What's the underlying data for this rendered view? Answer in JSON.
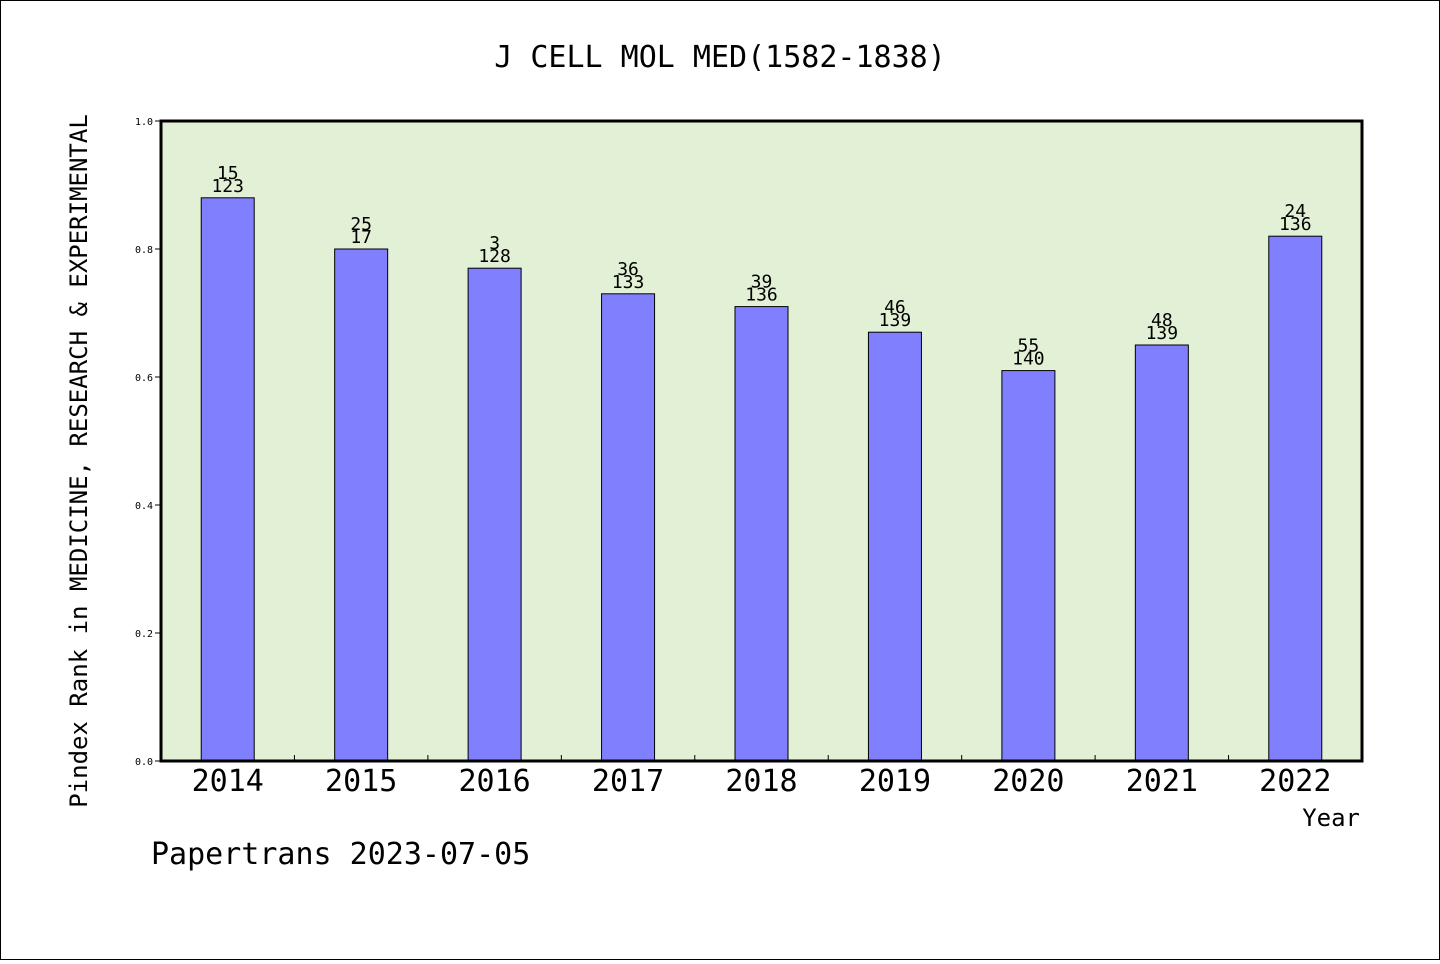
{
  "colors": {
    "plot_background": "#e2f0d6",
    "bar_fill": "#8080ff",
    "bar_stroke": "#000000",
    "axis": "#000000"
  },
  "footer": "Papertrans 2023-07-05",
  "chart_data": {
    "type": "bar",
    "title": "J CELL MOL MED(1582-1838)",
    "xlabel": "Year",
    "ylabel": "Pindex Rank in MEDICINE, RESEARCH & EXPERIMENTAL",
    "ylim": [
      0,
      1.0
    ],
    "yticks": [
      "0.0",
      "0.2",
      "0.4",
      "0.6",
      "0.8",
      "1.0"
    ],
    "grid": false,
    "categories": [
      "2014",
      "2015",
      "2016",
      "2017",
      "2018",
      "2019",
      "2020",
      "2021",
      "2022"
    ],
    "values": [
      0.88,
      0.8,
      0.77,
      0.73,
      0.71,
      0.67,
      0.61,
      0.65,
      0.82
    ],
    "annotations_top": [
      "15",
      "25",
      "3",
      "36",
      "39",
      "46",
      "55",
      "48",
      "24"
    ],
    "annotations_bottom": [
      "123",
      "17",
      "128",
      "133",
      "136",
      "139",
      "140",
      "139",
      "136"
    ]
  }
}
